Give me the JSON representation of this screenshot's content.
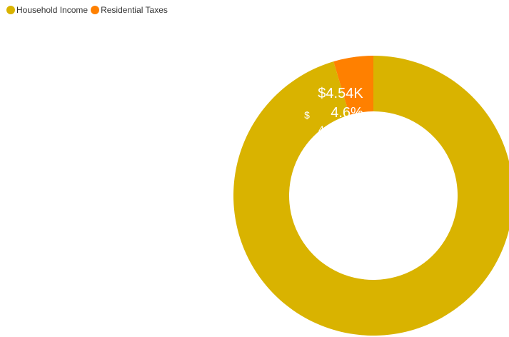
{
  "chart_data": {
    "type": "pie",
    "donut": true,
    "title": "",
    "categories": [
      "Household Income",
      "Residential Taxes"
    ],
    "values": [
      94.3,
      4.54
    ],
    "colors": [
      "#D9B300",
      "#FF8000"
    ],
    "legend_position": "top-left",
    "legend": [
      {
        "label": "Household Income",
        "color": "#D9B300"
      },
      {
        "label": "Residential Taxes",
        "color": "#FF8000"
      }
    ],
    "data_labels": {
      "value": "$4.54K",
      "percent": "4.6%",
      "fragment_1": "$",
      "fragment_2": "4"
    }
  }
}
